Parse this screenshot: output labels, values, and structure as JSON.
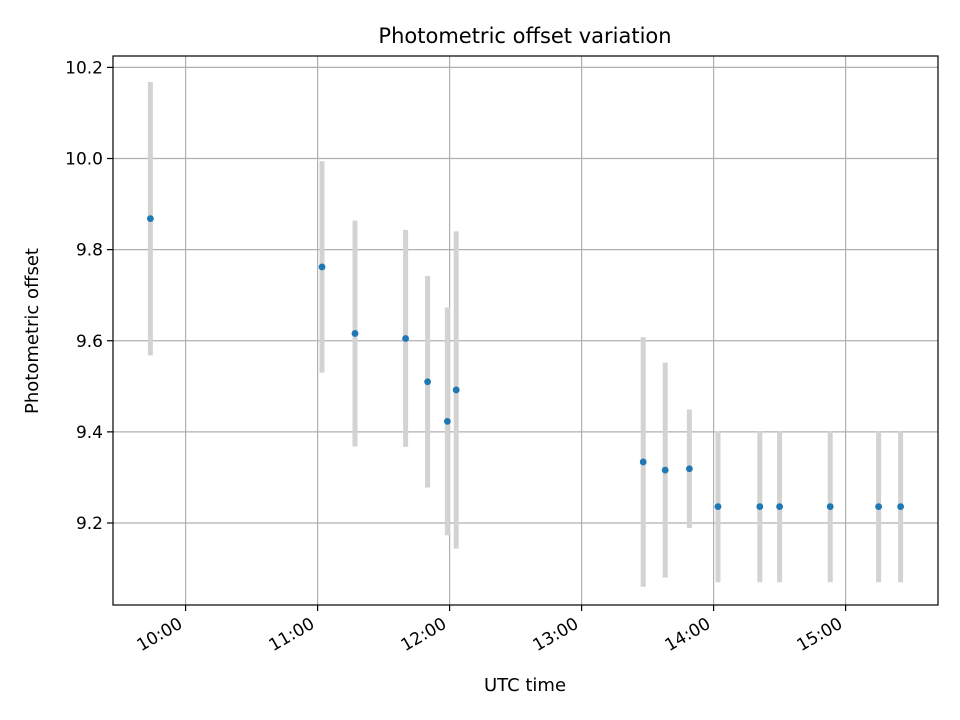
{
  "chart_data": {
    "type": "scatter",
    "title": "Photometric offset variation",
    "xlabel": "UTC time",
    "ylabel": "Photometric offset",
    "x_ticks": [
      "10:00",
      "11:00",
      "12:00",
      "13:00",
      "14:00",
      "15:00"
    ],
    "y_ticks": [
      "9.2",
      "9.4",
      "9.6",
      "9.8",
      "10.0",
      "10.2"
    ],
    "xlim": [
      "09:27",
      "15:42"
    ],
    "ylim": [
      9.02,
      10.225
    ],
    "grid": true,
    "marker_color": "#1f77b4",
    "errorbar_color": "#d3d3d3",
    "points": [
      {
        "time": "09:44",
        "y": 9.868,
        "err": 0.3
      },
      {
        "time": "11:02",
        "y": 9.762,
        "err": 0.232
      },
      {
        "time": "11:17",
        "y": 9.616,
        "err": 0.248
      },
      {
        "time": "11:40",
        "y": 9.605,
        "err": 0.238
      },
      {
        "time": "11:50",
        "y": 9.51,
        "err": 0.232
      },
      {
        "time": "11:59",
        "y": 9.423,
        "err": 0.25
      },
      {
        "time": "12:03",
        "y": 9.492,
        "err": 0.348
      },
      {
        "time": "13:28",
        "y": 9.334,
        "err": 0.274
      },
      {
        "time": "13:38",
        "y": 9.316,
        "err": 0.236
      },
      {
        "time": "13:49",
        "y": 9.319,
        "err": 0.13
      },
      {
        "time": "14:02",
        "y": 9.236,
        "err": 0.166
      },
      {
        "time": "14:21",
        "y": 9.236,
        "err": 0.166
      },
      {
        "time": "14:30",
        "y": 9.236,
        "err": 0.166
      },
      {
        "time": "14:53",
        "y": 9.236,
        "err": 0.166
      },
      {
        "time": "15:15",
        "y": 9.236,
        "err": 0.166
      },
      {
        "time": "15:25",
        "y": 9.236,
        "err": 0.166
      }
    ]
  }
}
